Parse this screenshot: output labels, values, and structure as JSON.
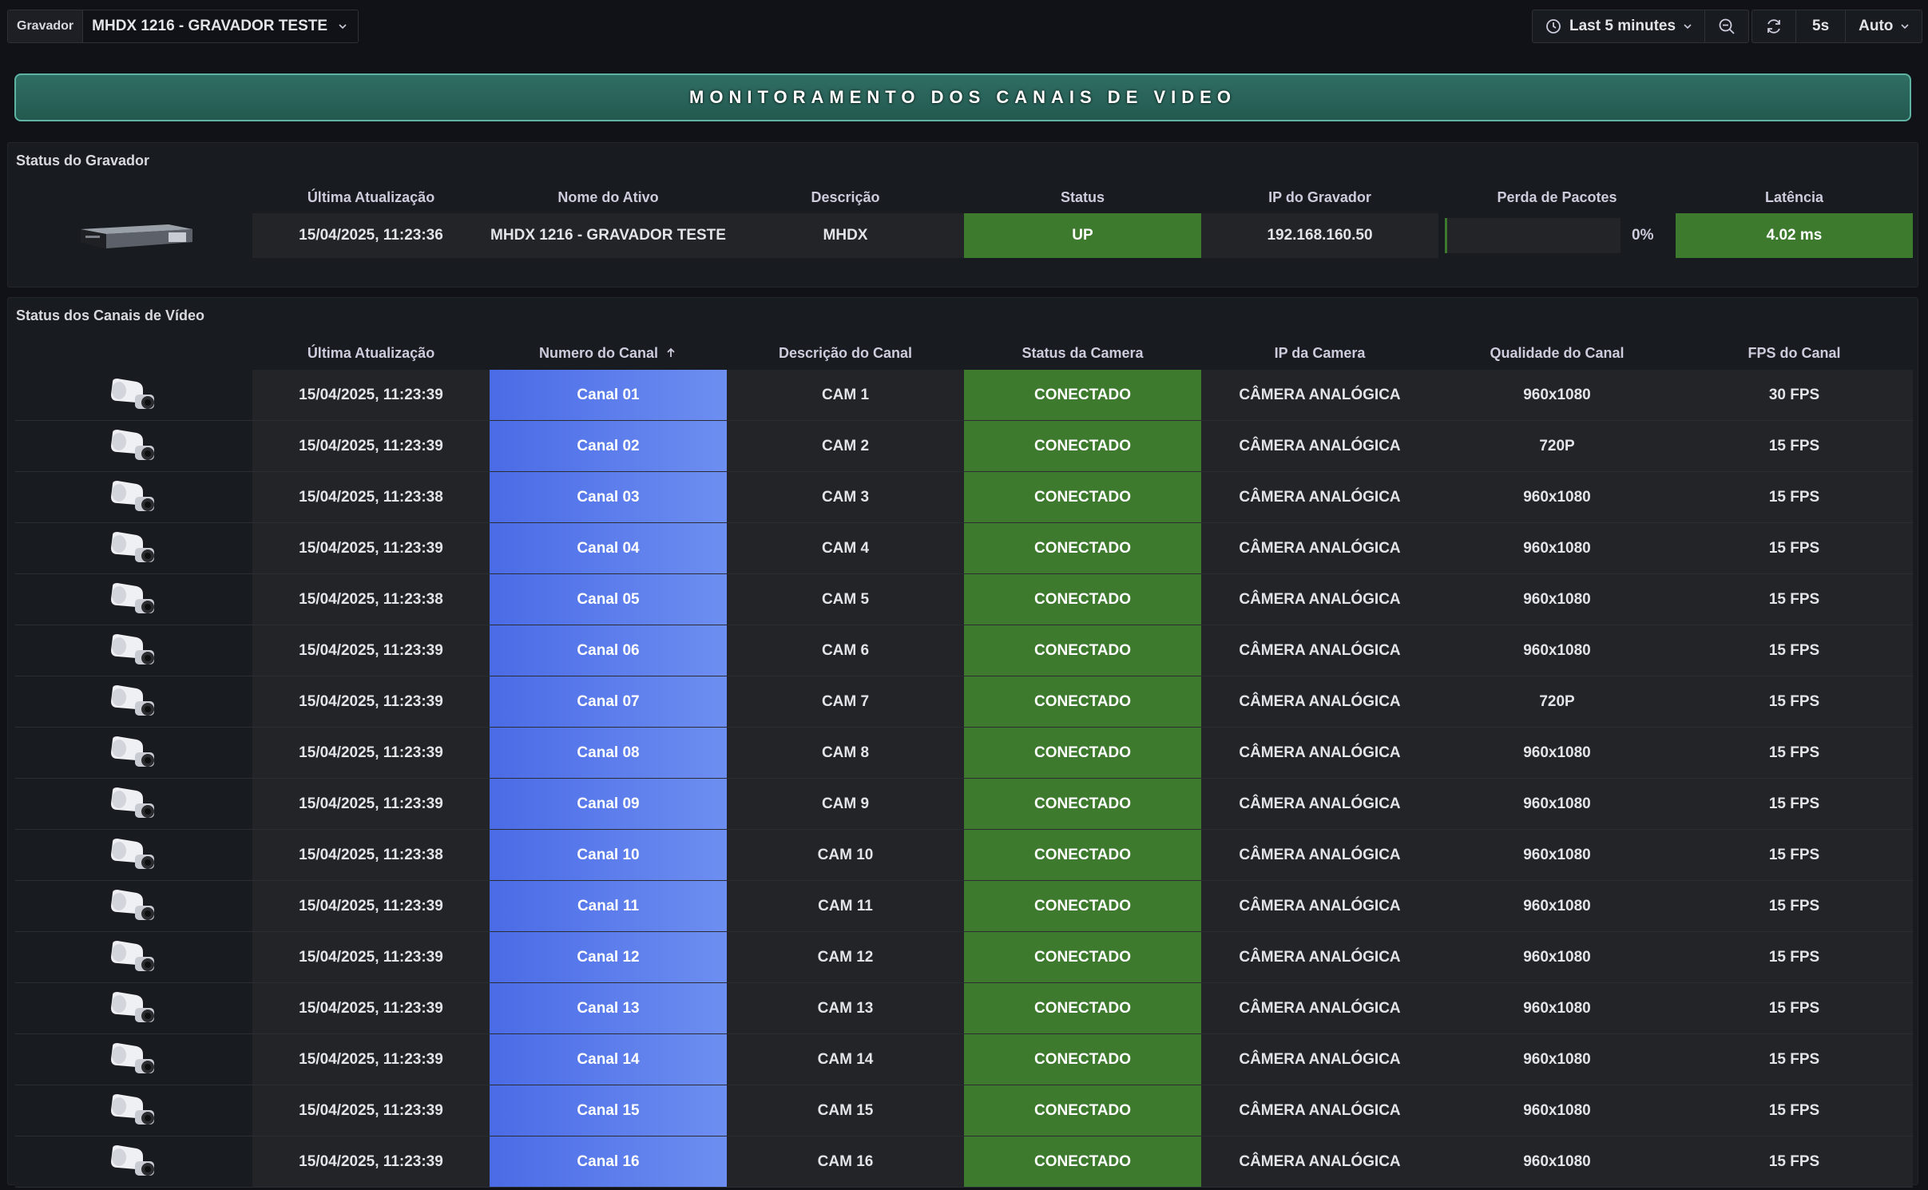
{
  "topbar": {
    "var_label": "Gravador",
    "var_value": "MHDX 1216 - GRAVADOR TESTE",
    "time_range": "Last 5 minutes",
    "refresh_interval": "5s",
    "auto_label": "Auto"
  },
  "banner": {
    "title": "MONITORAMENTO DOS CANAIS DE VIDEO"
  },
  "recorder_panel": {
    "title": "Status do Gravador",
    "columns": [
      "Última Atualização",
      "Nome do Ativo",
      "Descrição",
      "Status",
      "IP do Gravador",
      "Perda de Pacotes",
      "Latência"
    ],
    "row": {
      "updated": "15/04/2025, 11:23:36",
      "name": "MHDX 1216 - GRAVADOR TESTE",
      "description": "MHDX",
      "status": "UP",
      "ip": "192.168.160.50",
      "packet_loss": "0%",
      "packet_loss_fraction": 0,
      "latency": "4.02 ms"
    }
  },
  "channels_panel": {
    "title": "Status dos Canais de Vídeo",
    "columns": [
      "Última Atualização",
      "Numero do Canal",
      "Descrição do Canal",
      "Status da Camera",
      "IP da Camera",
      "Qualidade do Canal",
      "FPS do Canal"
    ],
    "rows": [
      {
        "updated": "15/04/2025, 11:23:39",
        "channel": "Canal 01",
        "desc": "CAM 1",
        "status": "CONECTADO",
        "ip": "CÂMERA ANALÓGICA",
        "quality": "960x1080",
        "fps": "30 FPS"
      },
      {
        "updated": "15/04/2025, 11:23:39",
        "channel": "Canal 02",
        "desc": "CAM 2",
        "status": "CONECTADO",
        "ip": "CÂMERA ANALÓGICA",
        "quality": "720P",
        "fps": "15 FPS"
      },
      {
        "updated": "15/04/2025, 11:23:38",
        "channel": "Canal 03",
        "desc": "CAM 3",
        "status": "CONECTADO",
        "ip": "CÂMERA ANALÓGICA",
        "quality": "960x1080",
        "fps": "15 FPS"
      },
      {
        "updated": "15/04/2025, 11:23:39",
        "channel": "Canal 04",
        "desc": "CAM 4",
        "status": "CONECTADO",
        "ip": "CÂMERA ANALÓGICA",
        "quality": "960x1080",
        "fps": "15 FPS"
      },
      {
        "updated": "15/04/2025, 11:23:38",
        "channel": "Canal 05",
        "desc": "CAM 5",
        "status": "CONECTADO",
        "ip": "CÂMERA ANALÓGICA",
        "quality": "960x1080",
        "fps": "15 FPS"
      },
      {
        "updated": "15/04/2025, 11:23:39",
        "channel": "Canal 06",
        "desc": "CAM 6",
        "status": "CONECTADO",
        "ip": "CÂMERA ANALÓGICA",
        "quality": "960x1080",
        "fps": "15 FPS"
      },
      {
        "updated": "15/04/2025, 11:23:39",
        "channel": "Canal 07",
        "desc": "CAM 7",
        "status": "CONECTADO",
        "ip": "CÂMERA ANALÓGICA",
        "quality": "720P",
        "fps": "15 FPS"
      },
      {
        "updated": "15/04/2025, 11:23:39",
        "channel": "Canal 08",
        "desc": "CAM 8",
        "status": "CONECTADO",
        "ip": "CÂMERA ANALÓGICA",
        "quality": "960x1080",
        "fps": "15 FPS"
      },
      {
        "updated": "15/04/2025, 11:23:39",
        "channel": "Canal 09",
        "desc": "CAM 9",
        "status": "CONECTADO",
        "ip": "CÂMERA ANALÓGICA",
        "quality": "960x1080",
        "fps": "15 FPS"
      },
      {
        "updated": "15/04/2025, 11:23:38",
        "channel": "Canal 10",
        "desc": "CAM 10",
        "status": "CONECTADO",
        "ip": "CÂMERA ANALÓGICA",
        "quality": "960x1080",
        "fps": "15 FPS"
      },
      {
        "updated": "15/04/2025, 11:23:39",
        "channel": "Canal 11",
        "desc": "CAM 11",
        "status": "CONECTADO",
        "ip": "CÂMERA ANALÓGICA",
        "quality": "960x1080",
        "fps": "15 FPS"
      },
      {
        "updated": "15/04/2025, 11:23:39",
        "channel": "Canal 12",
        "desc": "CAM 12",
        "status": "CONECTADO",
        "ip": "CÂMERA ANALÓGICA",
        "quality": "960x1080",
        "fps": "15 FPS"
      },
      {
        "updated": "15/04/2025, 11:23:39",
        "channel": "Canal 13",
        "desc": "CAM 13",
        "status": "CONECTADO",
        "ip": "CÂMERA ANALÓGICA",
        "quality": "960x1080",
        "fps": "15 FPS"
      },
      {
        "updated": "15/04/2025, 11:23:39",
        "channel": "Canal 14",
        "desc": "CAM 14",
        "status": "CONECTADO",
        "ip": "CÂMERA ANALÓGICA",
        "quality": "960x1080",
        "fps": "15 FPS"
      },
      {
        "updated": "15/04/2025, 11:23:39",
        "channel": "Canal 15",
        "desc": "CAM 15",
        "status": "CONECTADO",
        "ip": "CÂMERA ANALÓGICA",
        "quality": "960x1080",
        "fps": "15 FPS"
      },
      {
        "updated": "15/04/2025, 11:23:39",
        "channel": "Canal 16",
        "desc": "CAM 16",
        "status": "CONECTADO",
        "ip": "CÂMERA ANALÓGICA",
        "quality": "960x1080",
        "fps": "15 FPS"
      }
    ]
  },
  "icons": {
    "time": "clock-icon",
    "zoom_out": "zoom-out-icon",
    "refresh": "refresh-icon",
    "dropdown": "chevron-down-icon",
    "sort": "sort-ascending-icon",
    "recorder": "nvr-device-icon",
    "camera": "bullet-camera-icon"
  },
  "colors": {
    "background": "#111217",
    "panel": "#181b1f",
    "ok_green": "#3d7a2e",
    "channel_blue": "#5b7df0",
    "banner_teal": "#2f6e64"
  }
}
